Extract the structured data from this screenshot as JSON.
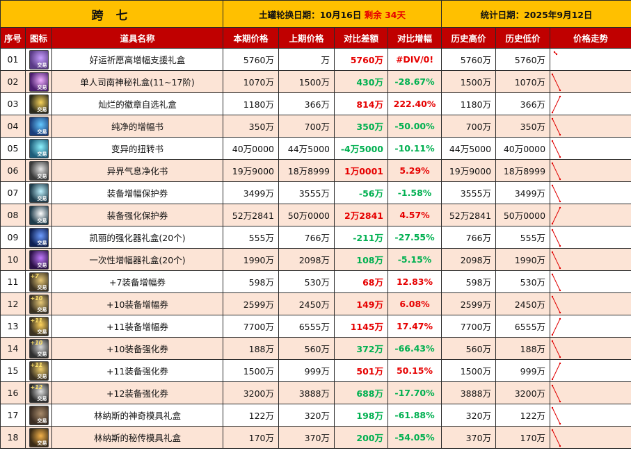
{
  "header": {
    "region": "跨 七",
    "refresh_prefix": "土罐轮换日期：10月16日",
    "refresh_remaining": "剩余 34天",
    "stat_date": "统计日期：2025年9月12日"
  },
  "columns": [
    "序号",
    "图标",
    "道具名称",
    "本期价格",
    "上期价格",
    "对比差额",
    "对比增幅",
    "历史高价",
    "历史低价",
    "价格走势"
  ],
  "icon_tag": "交易",
  "rows": [
    {
      "no": "01",
      "name": "好运祈愿高增幅支援礼盒",
      "cur": "5760万",
      "prev": "万",
      "diff": "5760万",
      "pct": "#DIV/0!",
      "hi": "5760万",
      "lo": "5760万",
      "trend": "down",
      "icon": "purple-gift-box-icon",
      "c1": "#5a3b86",
      "c2": "#c9a0ff",
      "plus": ""
    },
    {
      "no": "02",
      "name": "单人司南神秘礼盒(11~17阶)",
      "cur": "1070万",
      "prev": "1500万",
      "diff": "430万",
      "pct": "-28.67%",
      "hi": "1500万",
      "lo": "1070万",
      "trend": "down",
      "icon": "mystic-compass-box-icon",
      "c1": "#4b1e6e",
      "c2": "#f1b0ff",
      "plus": ""
    },
    {
      "no": "03",
      "name": "灿烂的徽章自选礼盒",
      "cur": "1180万",
      "prev": "366万",
      "diff": "814万",
      "pct": "222.40%",
      "hi": "1180万",
      "lo": "366万",
      "trend": "up",
      "icon": "golden-emblem-box-icon",
      "c1": "#2c2a1c",
      "c2": "#f7d35a",
      "plus": ""
    },
    {
      "no": "04",
      "name": "纯净的增幅书",
      "cur": "350万",
      "prev": "700万",
      "diff": "350万",
      "pct": "-50.00%",
      "hi": "700万",
      "lo": "350万",
      "trend": "down",
      "icon": "amplify-book-icon",
      "c1": "#1b3d7a",
      "c2": "#63c8ff",
      "plus": ""
    },
    {
      "no": "05",
      "name": "变异的扭转书",
      "cur": "40万0000",
      "prev": "44万5000",
      "diff": "-4万5000",
      "pct": "-10.11%",
      "hi": "44万5000",
      "lo": "40万0000",
      "trend": "down",
      "icon": "twist-book-icon",
      "c1": "#1d5d7a",
      "c2": "#8ff3ff",
      "plus": ""
    },
    {
      "no": "06",
      "name": "异界气息净化书",
      "cur": "19万9000",
      "prev": "18万8999",
      "diff": "1万0001",
      "pct": "5.29%",
      "hi": "19万9000",
      "lo": "18万8999",
      "trend": "down",
      "icon": "purify-book-icon",
      "c1": "#3a3a3a",
      "c2": "#e7e7e7",
      "plus": ""
    },
    {
      "no": "07",
      "name": "装备增幅保护券",
      "cur": "3499万",
      "prev": "3555万",
      "diff": "-56万",
      "pct": "-1.58%",
      "hi": "3555万",
      "lo": "3499万",
      "trend": "down",
      "icon": "amplify-protect-ticket-icon",
      "c1": "#1e3b4a",
      "c2": "#bff3ff",
      "plus": ""
    },
    {
      "no": "08",
      "name": "装备强化保护券",
      "cur": "52万2841",
      "prev": "50万0000",
      "diff": "2万2841",
      "pct": "4.57%",
      "hi": "52万2841",
      "lo": "50万0000",
      "trend": "up",
      "icon": "reinforce-protect-ticket-icon",
      "c1": "#1e3b4a",
      "c2": "#ffffff",
      "plus": ""
    },
    {
      "no": "09",
      "name": "凯丽的强化器礼盒(20个)",
      "cur": "555万",
      "prev": "766万",
      "diff": "-211万",
      "pct": "-27.55%",
      "hi": "766万",
      "lo": "555万",
      "trend": "down",
      "icon": "blue-orb-box-icon",
      "c1": "#0d1f52",
      "c2": "#6e9dff",
      "plus": ""
    },
    {
      "no": "10",
      "name": "一次性增幅器礼盒(20个)",
      "cur": "1990万",
      "prev": "2098万",
      "diff": "108万",
      "pct": "-5.15%",
      "hi": "2098万",
      "lo": "1990万",
      "trend": "down",
      "icon": "purple-orb-box-icon",
      "c1": "#2c1147",
      "c2": "#c27bff",
      "plus": ""
    },
    {
      "no": "11",
      "name": "+7装备增幅券",
      "cur": "598万",
      "prev": "530万",
      "diff": "68万",
      "pct": "12.83%",
      "hi": "598万",
      "lo": "530万",
      "trend": "down",
      "icon": "plus7-amplify-ticket-icon",
      "c1": "#3b3222",
      "c2": "#e8c977",
      "plus": "+7"
    },
    {
      "no": "12",
      "name": "+10装备增幅券",
      "cur": "2599万",
      "prev": "2450万",
      "diff": "149万",
      "pct": "6.08%",
      "hi": "2599万",
      "lo": "2450万",
      "trend": "down",
      "icon": "plus10-amplify-ticket-icon",
      "c1": "#3b3222",
      "c2": "#e8c977",
      "plus": "+10"
    },
    {
      "no": "13",
      "name": "+11装备增幅券",
      "cur": "7700万",
      "prev": "6555万",
      "diff": "1145万",
      "pct": "17.47%",
      "hi": "7700万",
      "lo": "6555万",
      "trend": "up",
      "icon": "plus11-amplify-ticket-icon",
      "c1": "#3b3222",
      "c2": "#ffd35a",
      "plus": "+11"
    },
    {
      "no": "14",
      "name": "+10装备强化券",
      "cur": "188万",
      "prev": "560万",
      "diff": "372万",
      "pct": "-66.43%",
      "hi": "560万",
      "lo": "188万",
      "trend": "down",
      "icon": "plus10-reinforce-ticket-icon",
      "c1": "#2f2f2f",
      "c2": "#d9d9d9",
      "plus": "+10"
    },
    {
      "no": "15",
      "name": "+11装备强化券",
      "cur": "1500万",
      "prev": "999万",
      "diff": "501万",
      "pct": "50.15%",
      "hi": "1500万",
      "lo": "999万",
      "trend": "up",
      "icon": "plus11-reinforce-ticket-icon",
      "c1": "#3b3222",
      "c2": "#f2d06b",
      "plus": "+11"
    },
    {
      "no": "16",
      "name": "+12装备强化券",
      "cur": "3200万",
      "prev": "3888万",
      "diff": "688万",
      "pct": "-17.70%",
      "hi": "3888万",
      "lo": "3200万",
      "trend": "down",
      "icon": "plus12-reinforce-ticket-icon",
      "c1": "#2a2a2a",
      "c2": "#e0e0e0",
      "plus": "+12"
    },
    {
      "no": "17",
      "name": "林纳斯的神奇模具礼盒",
      "cur": "122万",
      "prev": "320万",
      "diff": "198万",
      "pct": "-61.88%",
      "hi": "320万",
      "lo": "122万",
      "trend": "down",
      "icon": "mold-box-icon",
      "c1": "#3a2c22",
      "c2": "#a88b6b",
      "plus": ""
    },
    {
      "no": "18",
      "name": "林纳斯的秘传模具礼盒",
      "cur": "170万",
      "prev": "370万",
      "diff": "200万",
      "pct": "-54.05%",
      "hi": "370万",
      "lo": "170万",
      "trend": "down",
      "icon": "secret-mold-box-icon",
      "c1": "#3a2a15",
      "c2": "#f4b24a",
      "plus": ""
    }
  ]
}
